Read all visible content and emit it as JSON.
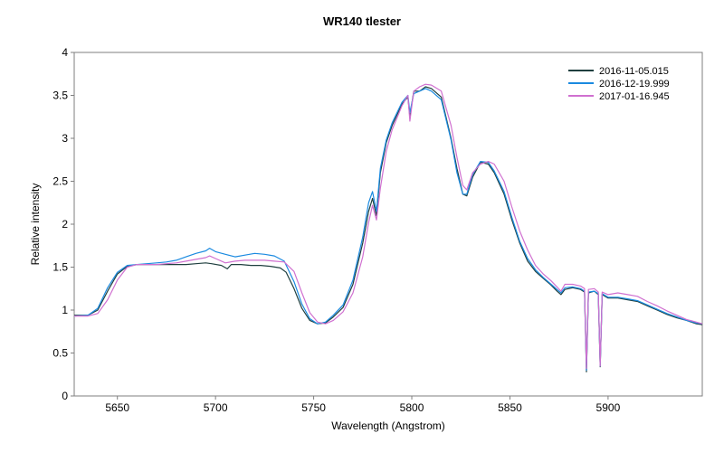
{
  "chart_data": {
    "type": "line",
    "title": "WR140  tlester",
    "xlabel": "Wavelength (Angstrom)",
    "ylabel": "Relative intensity",
    "xlim": [
      5628,
      5948
    ],
    "ylim": [
      0,
      4
    ],
    "x_ticks": [
      5650,
      5700,
      5750,
      5800,
      5850,
      5900
    ],
    "x_tick_labels": [
      "5650",
      "5700",
      "5750",
      "5800",
      "5850",
      "5900"
    ],
    "y_ticks": [
      0,
      0.5,
      1,
      1.5,
      2,
      2.5,
      3,
      3.5,
      4
    ],
    "y_tick_labels": [
      "0",
      "0.5",
      "1",
      "1.5",
      "2",
      "2.5",
      "3",
      "3.5",
      "4"
    ],
    "grid": false,
    "legend_position": "top-right",
    "series": [
      {
        "name": "2016-11-05.015",
        "color": "#1f3f3f",
        "points": [
          [
            5628,
            0.94
          ],
          [
            5635,
            0.94
          ],
          [
            5640,
            1.0
          ],
          [
            5645,
            1.22
          ],
          [
            5650,
            1.42
          ],
          [
            5655,
            1.51
          ],
          [
            5660,
            1.53
          ],
          [
            5665,
            1.53
          ],
          [
            5670,
            1.53
          ],
          [
            5675,
            1.53
          ],
          [
            5680,
            1.53
          ],
          [
            5685,
            1.53
          ],
          [
            5690,
            1.54
          ],
          [
            5695,
            1.55
          ],
          [
            5698,
            1.54
          ],
          [
            5703,
            1.52
          ],
          [
            5706,
            1.48
          ],
          [
            5708,
            1.53
          ],
          [
            5713,
            1.53
          ],
          [
            5718,
            1.52
          ],
          [
            5723,
            1.52
          ],
          [
            5728,
            1.51
          ],
          [
            5733,
            1.49
          ],
          [
            5736,
            1.44
          ],
          [
            5740,
            1.25
          ],
          [
            5744,
            1.02
          ],
          [
            5748,
            0.88
          ],
          [
            5752,
            0.84
          ],
          [
            5756,
            0.85
          ],
          [
            5760,
            0.92
          ],
          [
            5765,
            1.03
          ],
          [
            5770,
            1.3
          ],
          [
            5775,
            1.78
          ],
          [
            5778,
            2.15
          ],
          [
            5780,
            2.3
          ],
          [
            5782,
            2.1
          ],
          [
            5784,
            2.6
          ],
          [
            5787,
            2.95
          ],
          [
            5790,
            3.15
          ],
          [
            5795,
            3.4
          ],
          [
            5798,
            3.48
          ],
          [
            5799,
            3.25
          ],
          [
            5801,
            3.55
          ],
          [
            5804,
            3.55
          ],
          [
            5807,
            3.6
          ],
          [
            5810,
            3.58
          ],
          [
            5815,
            3.48
          ],
          [
            5820,
            3.0
          ],
          [
            5823,
            2.65
          ],
          [
            5826,
            2.35
          ],
          [
            5828,
            2.33
          ],
          [
            5831,
            2.55
          ],
          [
            5835,
            2.72
          ],
          [
            5839,
            2.7
          ],
          [
            5842,
            2.6
          ],
          [
            5847,
            2.35
          ],
          [
            5851,
            2.05
          ],
          [
            5855,
            1.78
          ],
          [
            5859,
            1.57
          ],
          [
            5863,
            1.45
          ],
          [
            5867,
            1.37
          ],
          [
            5871,
            1.29
          ],
          [
            5874,
            1.22
          ],
          [
            5876,
            1.18
          ],
          [
            5878,
            1.24
          ],
          [
            5882,
            1.26
          ],
          [
            5886,
            1.24
          ],
          [
            5888,
            1.21
          ],
          [
            5889,
            0.28
          ],
          [
            5890,
            1.2
          ],
          [
            5893,
            1.22
          ],
          [
            5895,
            1.18
          ],
          [
            5896,
            0.34
          ],
          [
            5897,
            1.18
          ],
          [
            5900,
            1.14
          ],
          [
            5905,
            1.14
          ],
          [
            5910,
            1.12
          ],
          [
            5915,
            1.1
          ],
          [
            5920,
            1.05
          ],
          [
            5925,
            1.0
          ],
          [
            5930,
            0.95
          ],
          [
            5935,
            0.91
          ],
          [
            5940,
            0.88
          ],
          [
            5945,
            0.84
          ],
          [
            5948,
            0.83
          ]
        ]
      },
      {
        "name": "2016-12-19.999",
        "color": "#1a8ae0",
        "points": [
          [
            5628,
            0.93
          ],
          [
            5635,
            0.94
          ],
          [
            5640,
            1.02
          ],
          [
            5645,
            1.26
          ],
          [
            5650,
            1.44
          ],
          [
            5655,
            1.52
          ],
          [
            5660,
            1.53
          ],
          [
            5665,
            1.54
          ],
          [
            5670,
            1.55
          ],
          [
            5675,
            1.56
          ],
          [
            5680,
            1.58
          ],
          [
            5685,
            1.62
          ],
          [
            5690,
            1.66
          ],
          [
            5695,
            1.69
          ],
          [
            5697,
            1.72
          ],
          [
            5700,
            1.68
          ],
          [
            5705,
            1.65
          ],
          [
            5710,
            1.62
          ],
          [
            5715,
            1.64
          ],
          [
            5720,
            1.66
          ],
          [
            5725,
            1.65
          ],
          [
            5730,
            1.63
          ],
          [
            5735,
            1.57
          ],
          [
            5740,
            1.33
          ],
          [
            5744,
            1.07
          ],
          [
            5748,
            0.9
          ],
          [
            5752,
            0.84
          ],
          [
            5756,
            0.86
          ],
          [
            5760,
            0.94
          ],
          [
            5765,
            1.06
          ],
          [
            5770,
            1.35
          ],
          [
            5775,
            1.85
          ],
          [
            5778,
            2.25
          ],
          [
            5780,
            2.38
          ],
          [
            5782,
            2.15
          ],
          [
            5784,
            2.65
          ],
          [
            5787,
            2.98
          ],
          [
            5790,
            3.18
          ],
          [
            5795,
            3.42
          ],
          [
            5798,
            3.5
          ],
          [
            5799,
            3.3
          ],
          [
            5801,
            3.52
          ],
          [
            5804,
            3.55
          ],
          [
            5807,
            3.58
          ],
          [
            5810,
            3.55
          ],
          [
            5815,
            3.45
          ],
          [
            5820,
            2.98
          ],
          [
            5823,
            2.6
          ],
          [
            5826,
            2.35
          ],
          [
            5828,
            2.35
          ],
          [
            5831,
            2.58
          ],
          [
            5835,
            2.73
          ],
          [
            5839,
            2.72
          ],
          [
            5842,
            2.62
          ],
          [
            5847,
            2.38
          ],
          [
            5851,
            2.08
          ],
          [
            5855,
            1.8
          ],
          [
            5859,
            1.6
          ],
          [
            5863,
            1.47
          ],
          [
            5867,
            1.38
          ],
          [
            5871,
            1.3
          ],
          [
            5874,
            1.24
          ],
          [
            5876,
            1.2
          ],
          [
            5878,
            1.26
          ],
          [
            5882,
            1.27
          ],
          [
            5886,
            1.25
          ],
          [
            5888,
            1.22
          ],
          [
            5889,
            0.3
          ],
          [
            5890,
            1.21
          ],
          [
            5893,
            1.22
          ],
          [
            5895,
            1.19
          ],
          [
            5896,
            0.35
          ],
          [
            5897,
            1.19
          ],
          [
            5900,
            1.15
          ],
          [
            5905,
            1.15
          ],
          [
            5910,
            1.13
          ],
          [
            5915,
            1.11
          ],
          [
            5920,
            1.06
          ],
          [
            5925,
            1.01
          ],
          [
            5930,
            0.96
          ],
          [
            5935,
            0.92
          ],
          [
            5940,
            0.88
          ],
          [
            5945,
            0.85
          ],
          [
            5948,
            0.84
          ]
        ]
      },
      {
        "name": "2017-01-16.945",
        "color": "#d070d0",
        "points": [
          [
            5628,
            0.93
          ],
          [
            5635,
            0.93
          ],
          [
            5640,
            0.96
          ],
          [
            5645,
            1.12
          ],
          [
            5650,
            1.35
          ],
          [
            5655,
            1.5
          ],
          [
            5660,
            1.53
          ],
          [
            5665,
            1.53
          ],
          [
            5670,
            1.53
          ],
          [
            5675,
            1.54
          ],
          [
            5680,
            1.55
          ],
          [
            5685,
            1.57
          ],
          [
            5690,
            1.59
          ],
          [
            5695,
            1.61
          ],
          [
            5697,
            1.63
          ],
          [
            5700,
            1.6
          ],
          [
            5705,
            1.55
          ],
          [
            5710,
            1.57
          ],
          [
            5715,
            1.58
          ],
          [
            5720,
            1.58
          ],
          [
            5725,
            1.58
          ],
          [
            5730,
            1.57
          ],
          [
            5735,
            1.56
          ],
          [
            5740,
            1.45
          ],
          [
            5744,
            1.2
          ],
          [
            5748,
            0.97
          ],
          [
            5752,
            0.86
          ],
          [
            5756,
            0.84
          ],
          [
            5760,
            0.88
          ],
          [
            5765,
            0.98
          ],
          [
            5770,
            1.2
          ],
          [
            5775,
            1.62
          ],
          [
            5778,
            2.02
          ],
          [
            5780,
            2.22
          ],
          [
            5782,
            2.05
          ],
          [
            5784,
            2.42
          ],
          [
            5787,
            2.85
          ],
          [
            5790,
            3.1
          ],
          [
            5795,
            3.38
          ],
          [
            5798,
            3.5
          ],
          [
            5799,
            3.2
          ],
          [
            5801,
            3.55
          ],
          [
            5804,
            3.6
          ],
          [
            5807,
            3.63
          ],
          [
            5810,
            3.62
          ],
          [
            5815,
            3.55
          ],
          [
            5820,
            3.15
          ],
          [
            5823,
            2.78
          ],
          [
            5826,
            2.45
          ],
          [
            5828,
            2.4
          ],
          [
            5831,
            2.6
          ],
          [
            5835,
            2.7
          ],
          [
            5839,
            2.73
          ],
          [
            5842,
            2.7
          ],
          [
            5847,
            2.5
          ],
          [
            5851,
            2.2
          ],
          [
            5855,
            1.92
          ],
          [
            5859,
            1.7
          ],
          [
            5863,
            1.52
          ],
          [
            5867,
            1.42
          ],
          [
            5871,
            1.34
          ],
          [
            5874,
            1.27
          ],
          [
            5876,
            1.22
          ],
          [
            5878,
            1.3
          ],
          [
            5882,
            1.3
          ],
          [
            5886,
            1.28
          ],
          [
            5888,
            1.25
          ],
          [
            5889,
            0.32
          ],
          [
            5890,
            1.24
          ],
          [
            5893,
            1.25
          ],
          [
            5895,
            1.21
          ],
          [
            5896,
            0.35
          ],
          [
            5897,
            1.21
          ],
          [
            5900,
            1.18
          ],
          [
            5905,
            1.2
          ],
          [
            5910,
            1.18
          ],
          [
            5915,
            1.16
          ],
          [
            5920,
            1.1
          ],
          [
            5925,
            1.05
          ],
          [
            5930,
            0.99
          ],
          [
            5935,
            0.94
          ],
          [
            5940,
            0.89
          ],
          [
            5945,
            0.86
          ],
          [
            5948,
            0.84
          ]
        ]
      }
    ]
  }
}
